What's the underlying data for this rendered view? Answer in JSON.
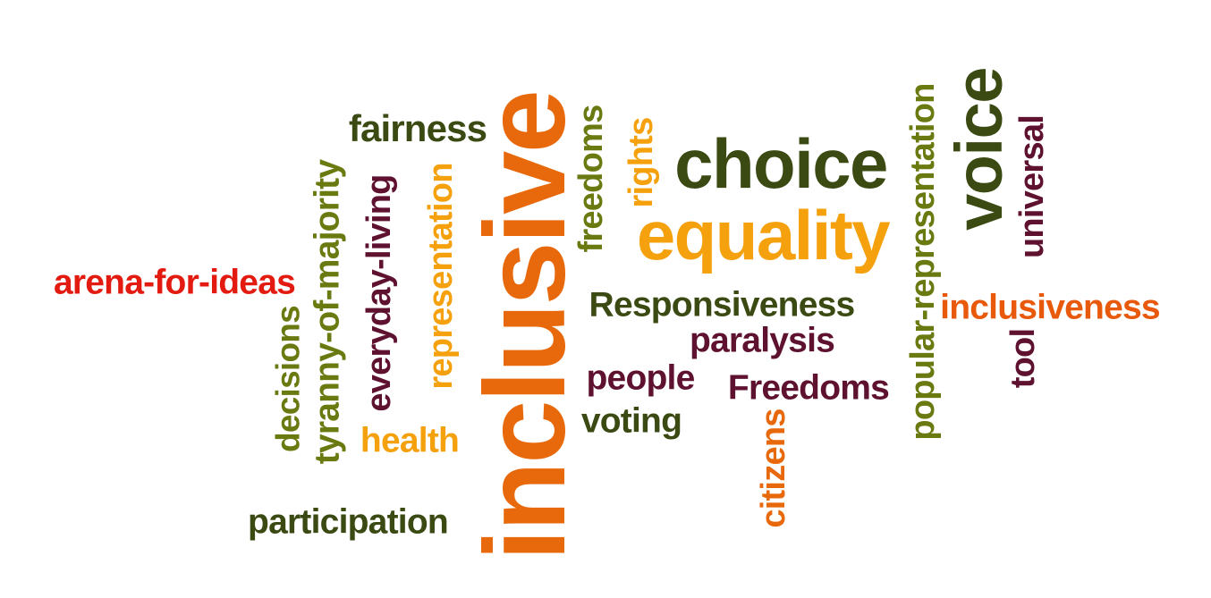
{
  "word_cloud": {
    "words": [
      {
        "text": "inclusive",
        "color": "#e8690b",
        "vertical": true
      },
      {
        "text": "choice",
        "color": "#3a4a12",
        "vertical": false
      },
      {
        "text": "equality",
        "color": "#f5a10d",
        "vertical": false
      },
      {
        "text": "voice",
        "color": "#3a4a12",
        "vertical": true
      },
      {
        "text": "Responsiveness",
        "color": "#3a4a12",
        "vertical": false
      },
      {
        "text": "fairness",
        "color": "#3a4a12",
        "vertical": false
      },
      {
        "text": "arena-for-ideas",
        "color": "#e31a0f",
        "vertical": false
      },
      {
        "text": "tyranny-of-majority",
        "color": "#6b7a10",
        "vertical": true
      },
      {
        "text": "decisions",
        "color": "#6b7a10",
        "vertical": true
      },
      {
        "text": "everyday-living",
        "color": "#5e1230",
        "vertical": true
      },
      {
        "text": "representation",
        "color": "#f5a10d",
        "vertical": true
      },
      {
        "text": "freedoms",
        "color": "#6b7a10",
        "vertical": true
      },
      {
        "text": "rights",
        "color": "#f5a10d",
        "vertical": true
      },
      {
        "text": "popular-representation",
        "color": "#6b7a10",
        "vertical": true
      },
      {
        "text": "universal",
        "color": "#5e1230",
        "vertical": true
      },
      {
        "text": "inclusiveness",
        "color": "#e8590b",
        "vertical": false
      },
      {
        "text": "tool",
        "color": "#5e1230",
        "vertical": true
      },
      {
        "text": "paralysis",
        "color": "#5e1230",
        "vertical": false
      },
      {
        "text": "people",
        "color": "#5e1230",
        "vertical": false
      },
      {
        "text": "Freedoms",
        "color": "#5e1230",
        "vertical": false
      },
      {
        "text": "voting",
        "color": "#3a4a12",
        "vertical": false
      },
      {
        "text": "health",
        "color": "#f5a10d",
        "vertical": false
      },
      {
        "text": "citizens",
        "color": "#e8690b",
        "vertical": true
      },
      {
        "text": "participation",
        "color": "#3a4a12",
        "vertical": false
      }
    ]
  }
}
